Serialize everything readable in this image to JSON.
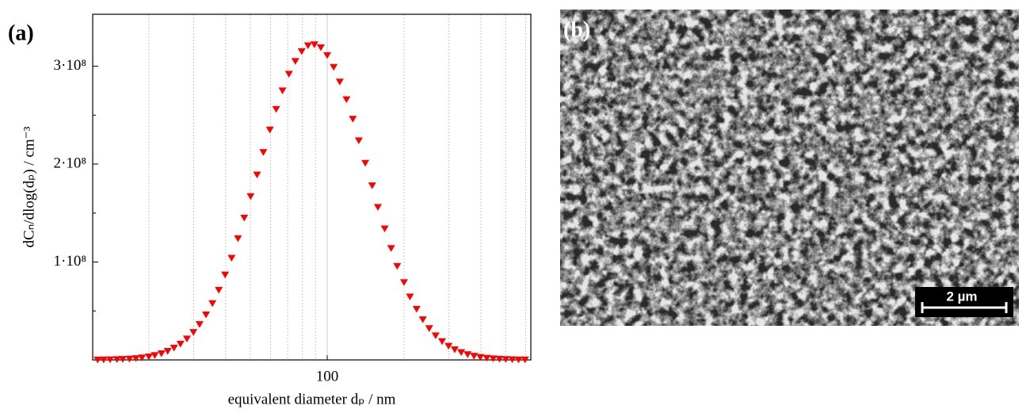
{
  "chart_data": {
    "type": "scatter",
    "panel_label": "(a)",
    "xlabel": "equivalent diameter dₚ / nm",
    "ylabel": "dCₙ/dlog(dₚ) / cm⁻³",
    "xscale": "log",
    "color": "#ff0000",
    "marker": "triangle-down",
    "xlim": [
      12.05,
      628
    ],
    "ylim": [
      0,
      353000000
    ],
    "xticks": [
      100
    ],
    "xminor": [
      20,
      30,
      40,
      50,
      60,
      70,
      80,
      90,
      200,
      300,
      400,
      500,
      600
    ],
    "yticks": [
      {
        "value": 100000000,
        "label": "1·10⁸"
      },
      {
        "value": 200000000,
        "label": "2·10⁸"
      },
      {
        "value": 300000000,
        "label": "3·10⁸"
      }
    ],
    "yminor": [
      50000000,
      150000000,
      250000000
    ],
    "x": [
      12.6,
      13.3,
      14.1,
      15.0,
      15.8,
      16.8,
      17.8,
      18.8,
      20.0,
      21.1,
      22.4,
      23.7,
      25.1,
      26.6,
      28.2,
      29.9,
      31.6,
      33.5,
      35.5,
      37.6,
      39.8,
      42.2,
      44.7,
      47.3,
      50.1,
      53.1,
      56.2,
      59.6,
      63.1,
      66.8,
      70.8,
      75.0,
      79.4,
      84.1,
      89.1,
      94.4,
      100,
      106,
      112,
      119,
      126,
      133,
      141,
      150,
      158,
      168,
      178,
      188,
      200,
      211,
      224,
      237,
      251,
      266,
      282,
      299,
      316,
      335,
      355,
      376,
      398,
      422,
      447,
      473,
      501,
      531,
      562,
      596
    ],
    "values": [
      121000.0,
      191000.0,
      299000.0,
      461000.0,
      701000.0,
      1050000.0,
      1550000.0,
      2270000.0,
      3260000.0,
      4620000.0,
      6470000.0,
      8930000.0,
      12200000.0,
      16300000.0,
      21600000.0,
      28200000.0,
      36300000.0,
      46100000.0,
      57700000.0,
      71300000.0,
      86900000.0,
      104000000.0,
      124000000.0,
      145000000.0,
      167000000.0,
      189000000.0,
      212000000.0,
      235000000.0,
      256000000.0,
      275000000.0,
      292000000.0,
      305000000.0,
      315000000.0,
      321000000.0,
      322000000.0,
      319000000.0,
      311000000.0,
      299000000.0,
      284000000.0,
      266000000.0,
      246000000.0,
      224000000.0,
      201000000.0,
      178000000.0,
      156000000.0,
      134000000.0,
      114000000.0,
      95700000.0,
      79100000.0,
      64500000.0,
      51900000.0,
      41200000.0,
      32200000.0,
      24800000.0,
      18900000.0,
      14200000.0,
      10500000.0,
      7660000.0,
      5520000.0,
      3920000.0,
      2740000.0,
      1890000.0,
      1290000.0,
      866000.0,
      573000.0,
      374000.0,
      242000.0,
      154000.0
    ]
  },
  "image_panel": {
    "panel_label": "(b)",
    "scale_bar": "2 µm"
  }
}
